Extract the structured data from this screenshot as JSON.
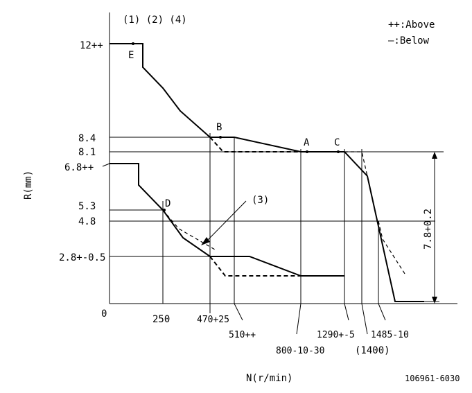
{
  "diagram": {
    "notes": "(1) (2) (4)",
    "legend": {
      "above": "++:Above",
      "below": "—:Below"
    },
    "y_axis_label": "R(mm)",
    "x_axis_label": "N(r/min)",
    "origin": "0",
    "y_ticks": [
      "12++",
      "8.4",
      "8.1",
      "6.8++",
      "5.3",
      "4.8",
      "2.8+-0.5"
    ],
    "x_ticks": [
      "250",
      "470+25",
      "510++",
      "800-10-30",
      "1290+-5",
      "(1400)",
      "1485-10"
    ],
    "points": {
      "A": "A",
      "B": "B",
      "C": "C",
      "D": "D",
      "E": "E"
    },
    "callout": "(3)",
    "dimension": "7.8+0.2",
    "doc_ref": "106961-6030"
  }
}
